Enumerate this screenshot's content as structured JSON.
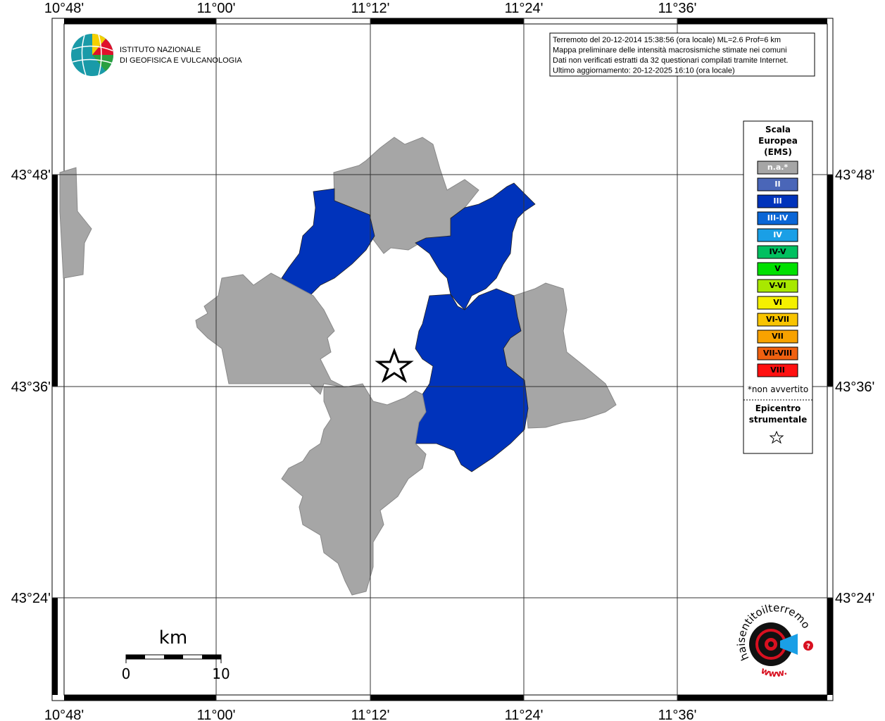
{
  "map": {
    "longitude_labels": [
      "10°48'",
      "11°00'",
      "11°12'",
      "11°24'",
      "11°36'"
    ],
    "latitude_labels": [
      "43°48'",
      "43°36'",
      "43°24'"
    ]
  },
  "logo": {
    "line1": "ISTITUTO NAZIONALE",
    "line2": "DI GEOFISICA E VULCANOLOGIA"
  },
  "info": {
    "lines": [
      "Terremoto del 20-12-2014 15:38:56 (ora locale) ML=2.6 Prof=6 km",
      "Mappa preliminare delle intensità macrosismiche stimate nei comuni",
      "Dati non verificati estratti da 32 questionari compilati tramite Internet.",
      "Ultimo aggiornamento: 20-12-2025 16:10 (ora locale)"
    ]
  },
  "legend": {
    "title": [
      "Scala",
      "Europea",
      "(EMS)"
    ],
    "items": [
      {
        "label": "n.a.*",
        "color": "#a6a6a6",
        "text_color": "#ffffff"
      },
      {
        "label": "II",
        "color": "#4a66b8",
        "text_color": "#ffffff"
      },
      {
        "label": "III",
        "color": "#0033bb",
        "text_color": "#ffffff"
      },
      {
        "label": "III-IV",
        "color": "#0a66d6",
        "text_color": "#ffffff"
      },
      {
        "label": "IV",
        "color": "#1a9fe6",
        "text_color": "#ffffff"
      },
      {
        "label": "IV-V",
        "color": "#00c060",
        "text_color": "#000000"
      },
      {
        "label": "V",
        "color": "#00e000",
        "text_color": "#000000"
      },
      {
        "label": "V-VI",
        "color": "#a8e800",
        "text_color": "#000000"
      },
      {
        "label": "VI",
        "color": "#f5f000",
        "text_color": "#000000"
      },
      {
        "label": "VI-VII",
        "color": "#f8c400",
        "text_color": "#000000"
      },
      {
        "label": "VII",
        "color": "#f8a200",
        "text_color": "#000000"
      },
      {
        "label": "VII-VIII",
        "color": "#f06010",
        "text_color": "#000000"
      },
      {
        "label": "VIII",
        "color": "#ff1010",
        "text_color": "#000000"
      }
    ],
    "note": "*non avvertito",
    "epicenter": [
      "Epicentro",
      "strumentale"
    ]
  },
  "scale_bar": {
    "unit": "km",
    "start": "0",
    "end": "10"
  },
  "logo_bottom": {
    "site": "haisentitoilterremoto.it",
    "www": "www.",
    "mark": "?"
  }
}
